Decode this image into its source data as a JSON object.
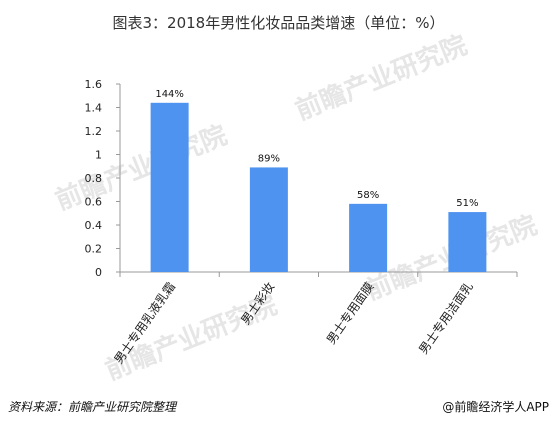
{
  "title": "图表3：2018年男性化妆品品类增速（单位：%）",
  "footer": {
    "source": "资料来源：前瞻产业研究院整理",
    "brand": "@前瞻经济学人APP"
  },
  "watermark": "前瞻产业研究院",
  "colors": {
    "bar": "#4f93f0",
    "axis": "#999999",
    "text": "#333333"
  },
  "chart_data": {
    "type": "bar",
    "title": "图表3：2018年男性化妆品品类增速（单位：%）",
    "categories": [
      "男士专用乳液乳霜",
      "男士彩妆",
      "男士专用面膜",
      "男士专用洁面乳"
    ],
    "values": [
      1.44,
      0.89,
      0.58,
      0.51
    ],
    "data_labels": [
      "144%",
      "89%",
      "58%",
      "51%"
    ],
    "yticks": [
      "0",
      "0.2",
      "0.4",
      "0.6",
      "0.8",
      "1",
      "1.2",
      "1.4",
      "1.6"
    ],
    "ylim": [
      0,
      1.6
    ],
    "grid": false,
    "legend": "none"
  }
}
